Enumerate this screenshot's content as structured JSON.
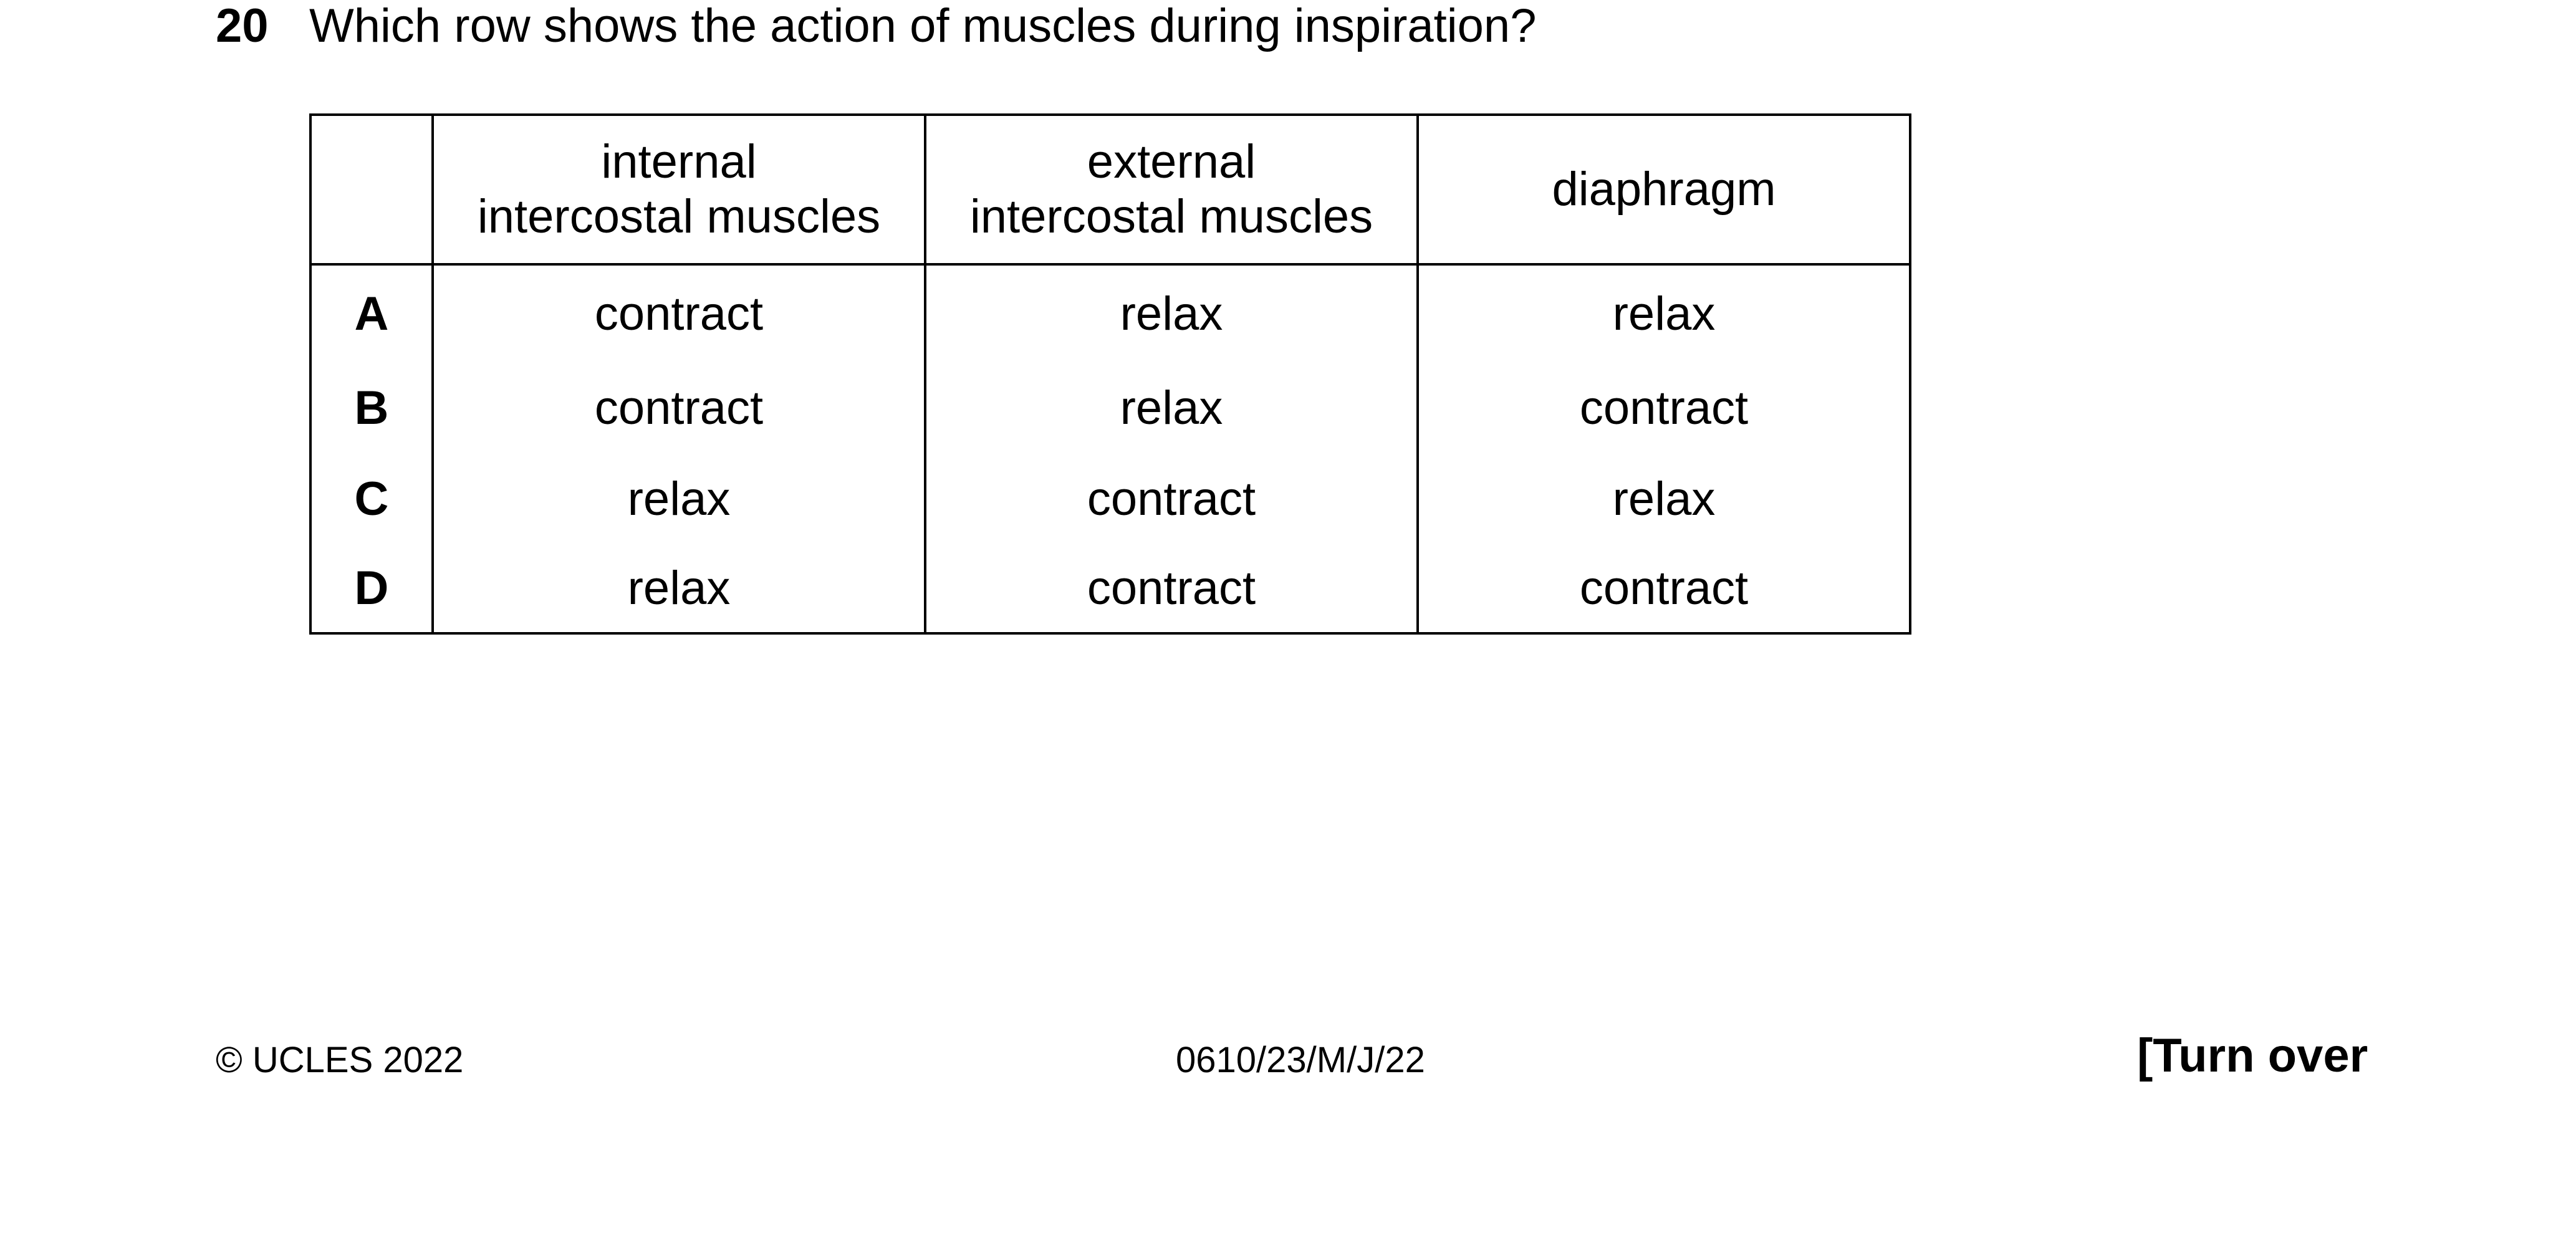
{
  "question": {
    "number": "20",
    "text": "Which row shows the action of muscles during inspiration?"
  },
  "table": {
    "headers": [
      "",
      "internal\nintercostal muscles",
      "external\nintercostal muscles",
      "diaphragm"
    ],
    "rows": [
      {
        "letter": "A",
        "cells": [
          "contract",
          "relax",
          "relax"
        ]
      },
      {
        "letter": "B",
        "cells": [
          "contract",
          "relax",
          "contract"
        ]
      },
      {
        "letter": "C",
        "cells": [
          "relax",
          "contract",
          "relax"
        ]
      },
      {
        "letter": "D",
        "cells": [
          "relax",
          "contract",
          "contract"
        ]
      }
    ]
  },
  "footer": {
    "copyright": "© UCLES 2022",
    "code": "0610/23/M/J/22",
    "turn_over": "[Turn over"
  }
}
